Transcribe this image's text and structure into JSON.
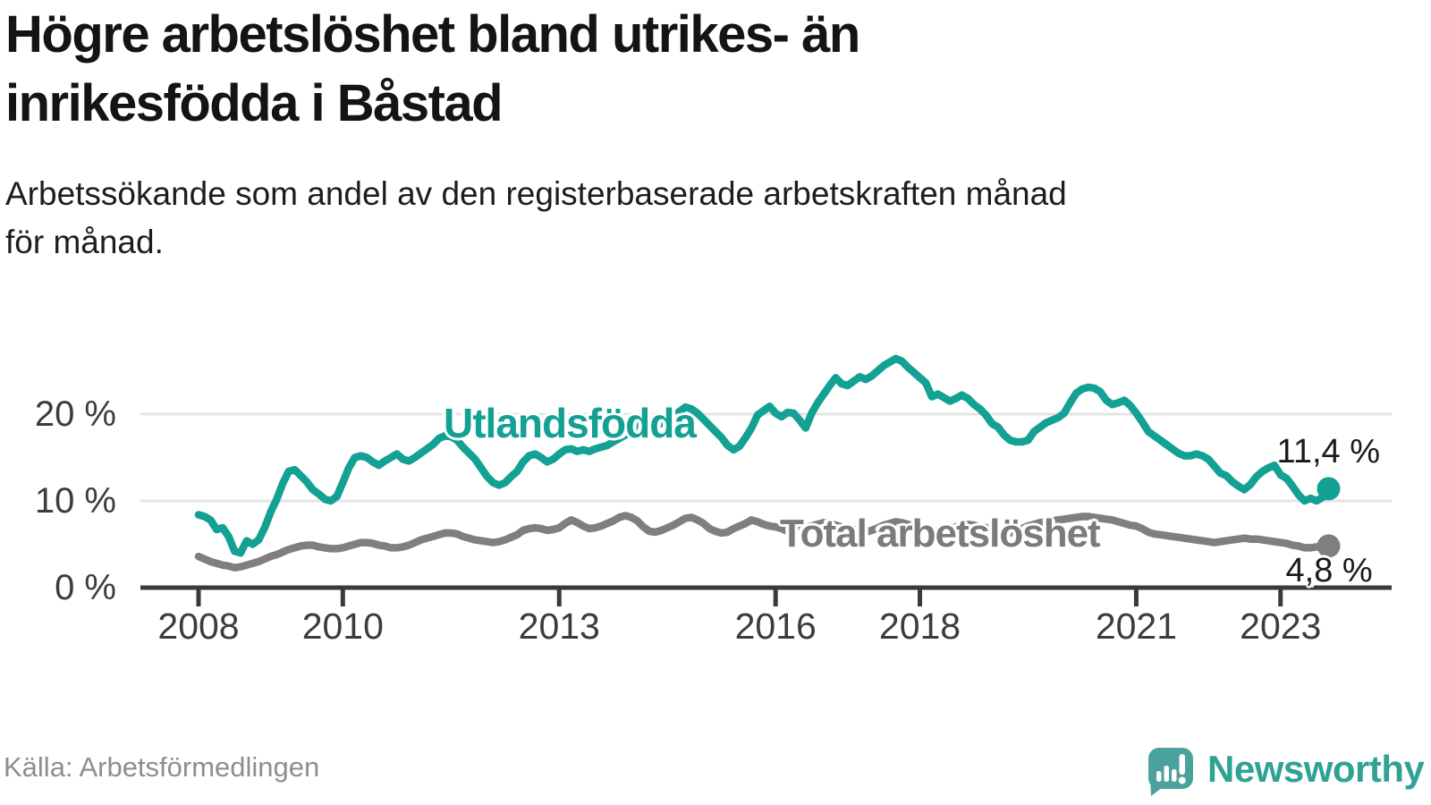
{
  "header": {
    "title_lines": [
      "Högre arbetslöshet bland utrikes- än",
      "inrikesfödda i Båstad"
    ],
    "subtitle_lines": [
      "Arbetssökande som andel av den registerbaserade arbetskraften månad",
      "för månad."
    ]
  },
  "footer": {
    "source": "Källa: Arbetsförmedlingen",
    "brand": "Newsworthy",
    "brand_color": "#2fa295",
    "brand_icon": "speech-bubble-bar-chart-exclamation"
  },
  "chart_data": {
    "type": "line",
    "title": "Högre arbetslöshet bland utrikes- än inrikesfödda i Båstad",
    "subtitle": "Arbetssökande som andel av den registerbaserade arbetskraften månad för månad.",
    "xlabel": "",
    "ylabel": "",
    "x_frequency": "monthly",
    "x_start": "2008-01",
    "x_end": "2023-09",
    "ylim": [
      0,
      27.5
    ],
    "grid": "horizontal",
    "legend_position": "inline-labels",
    "yticks": [
      "0 %",
      "10 %",
      "20 %"
    ],
    "ytick_values": [
      0,
      10,
      20
    ],
    "xticks": [
      "2008",
      "2010",
      "2013",
      "2016",
      "2018",
      "2021",
      "2023"
    ],
    "xtick_values": [
      2008,
      2010,
      2013,
      2016,
      2018,
      2021,
      2023
    ],
    "axis_color": "#3a3a3a",
    "gridline_color": "#e4e4e4",
    "series": [
      {
        "name": "Utlandsfödda",
        "label": "Utlandsfödda",
        "color": "#12a192",
        "end_label": "11,4 %",
        "end_value": 11.4,
        "values": [
          8.4,
          8.2,
          7.8,
          6.7,
          6.9,
          5.9,
          4.2,
          4.0,
          5.4,
          5.0,
          5.5,
          6.9,
          8.7,
          10.2,
          12.0,
          13.4,
          13.6,
          12.9,
          12.2,
          11.3,
          10.8,
          10.2,
          10.0,
          10.5,
          12.1,
          13.8,
          15.0,
          15.2,
          15.0,
          14.5,
          14.1,
          14.6,
          15.0,
          15.4,
          14.8,
          14.6,
          15.0,
          15.5,
          16.0,
          16.5,
          17.2,
          17.5,
          17.4,
          17.0,
          16.2,
          15.5,
          14.8,
          13.8,
          12.8,
          12.1,
          11.8,
          12.1,
          12.8,
          13.4,
          14.5,
          15.2,
          15.4,
          15.0,
          14.5,
          14.8,
          15.4,
          15.9,
          16.0,
          15.7,
          15.9,
          15.7,
          16.0,
          16.2,
          16.4,
          16.8,
          17.2,
          17.6,
          18.0,
          18.5,
          19.0,
          19.4,
          19.2,
          18.9,
          19.3,
          19.8,
          20.3,
          20.8,
          20.6,
          20.1,
          19.4,
          18.7,
          18.0,
          17.3,
          16.4,
          15.9,
          16.3,
          17.3,
          18.4,
          19.9,
          20.4,
          20.9,
          20.1,
          19.7,
          20.2,
          20.1,
          19.3,
          18.4,
          20.1,
          21.3,
          22.3,
          23.3,
          24.2,
          23.5,
          23.3,
          23.8,
          24.3,
          24.0,
          24.4,
          25.0,
          25.6,
          26.0,
          26.4,
          26.1,
          25.4,
          24.8,
          24.2,
          23.6,
          22.0,
          22.3,
          21.9,
          21.5,
          21.8,
          22.2,
          21.8,
          21.1,
          20.6,
          19.9,
          18.9,
          18.5,
          17.6,
          17.0,
          16.8,
          16.8,
          17.0,
          18.0,
          18.5,
          19.0,
          19.3,
          19.6,
          20.1,
          21.3,
          22.4,
          22.9,
          23.1,
          23.0,
          22.6,
          21.6,
          21.1,
          21.3,
          21.6,
          21.0,
          20.1,
          19.1,
          18.0,
          17.5,
          17.0,
          16.5,
          16.0,
          15.5,
          15.2,
          15.2,
          15.4,
          15.2,
          14.8,
          14.0,
          13.2,
          12.9,
          12.2,
          11.7,
          11.3,
          11.9,
          12.8,
          13.4,
          13.8,
          14.1,
          13.0,
          12.6,
          11.7,
          10.7,
          10.0,
          10.3,
          10.0,
          10.4,
          11.4
        ]
      },
      {
        "name": "Total arbetslöshet",
        "label": "Total arbetslöshet",
        "color": "#7f7f7f",
        "end_label": "4,8 %",
        "end_value": 4.8,
        "values": [
          3.6,
          3.3,
          3.0,
          2.8,
          2.6,
          2.5,
          2.3,
          2.4,
          2.6,
          2.8,
          3.0,
          3.3,
          3.6,
          3.8,
          4.1,
          4.4,
          4.6,
          4.8,
          4.9,
          4.9,
          4.7,
          4.6,
          4.5,
          4.5,
          4.6,
          4.8,
          5.0,
          5.2,
          5.2,
          5.1,
          4.9,
          4.8,
          4.6,
          4.6,
          4.7,
          4.9,
          5.2,
          5.5,
          5.7,
          5.9,
          6.1,
          6.3,
          6.3,
          6.2,
          5.9,
          5.7,
          5.5,
          5.4,
          5.3,
          5.2,
          5.3,
          5.5,
          5.8,
          6.1,
          6.6,
          6.8,
          6.9,
          6.8,
          6.6,
          6.7,
          6.9,
          7.4,
          7.8,
          7.5,
          7.1,
          6.8,
          6.9,
          7.1,
          7.4,
          7.7,
          8.1,
          8.3,
          8.1,
          7.7,
          7.0,
          6.5,
          6.4,
          6.6,
          6.9,
          7.2,
          7.6,
          8.0,
          8.1,
          7.8,
          7.4,
          6.8,
          6.5,
          6.3,
          6.4,
          6.8,
          7.1,
          7.4,
          7.8,
          7.6,
          7.3,
          7.1,
          7.0,
          6.8,
          6.5,
          6.4,
          6.6,
          6.9,
          7.1,
          7.3,
          7.5,
          7.4,
          7.2,
          7.0,
          6.9,
          6.7,
          6.5,
          6.4,
          6.6,
          6.9,
          7.2,
          7.4,
          7.6,
          7.5,
          7.3,
          7.1,
          7.0,
          6.8,
          6.5,
          6.3,
          6.4,
          6.7,
          7.0,
          7.2,
          7.3,
          7.2,
          7.0,
          6.9,
          6.8,
          6.6,
          6.4,
          6.3,
          6.5,
          6.8,
          7.1,
          7.3,
          7.5,
          7.6,
          7.7,
          7.8,
          7.9,
          8.0,
          8.1,
          8.2,
          8.2,
          8.1,
          8.0,
          7.9,
          7.8,
          7.6,
          7.4,
          7.2,
          7.1,
          6.8,
          6.4,
          6.2,
          6.1,
          6.0,
          5.9,
          5.8,
          5.7,
          5.6,
          5.5,
          5.4,
          5.3,
          5.2,
          5.3,
          5.4,
          5.5,
          5.6,
          5.7,
          5.6,
          5.6,
          5.5,
          5.4,
          5.3,
          5.2,
          5.1,
          4.9,
          4.8,
          4.6,
          4.6,
          4.7,
          4.7,
          4.8
        ]
      }
    ]
  }
}
